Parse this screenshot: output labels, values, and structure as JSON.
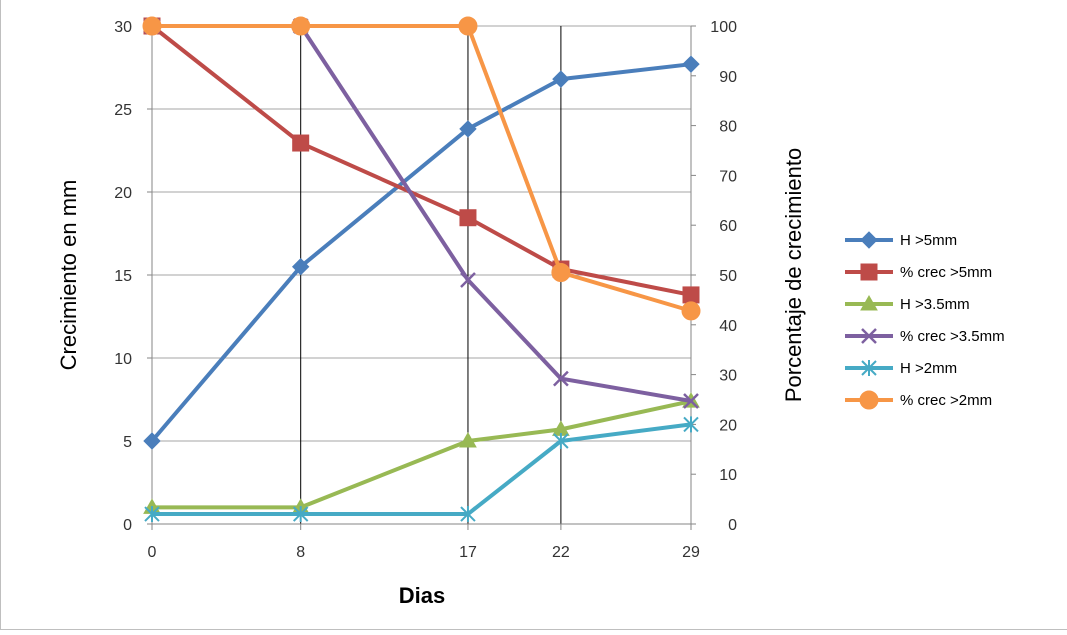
{
  "chart_data": {
    "type": "line",
    "x": [
      0,
      8,
      17,
      22,
      29
    ],
    "xlabel": "Dias",
    "ylabel": "Crecimiento en mm",
    "y2label": "Porcentaje  de crecimiento",
    "ylim": [
      0,
      30
    ],
    "y2lim": [
      0,
      100
    ],
    "yticks": [
      "0",
      "5",
      "10",
      "15",
      "20",
      "25",
      "30"
    ],
    "y2ticks": [
      "0",
      "10",
      "20",
      "30",
      "40",
      "50",
      "60",
      "70",
      "80",
      "90",
      "100"
    ],
    "xticks": [
      "0",
      "8",
      "17",
      "22",
      "29"
    ],
    "grid": "vertical lines at each x value",
    "legend_position": "right",
    "series": [
      {
        "name": "H >5mm",
        "axis": "left",
        "color": "#4a7ebb",
        "marker": "diamond",
        "values": [
          5.0,
          15.5,
          23.8,
          26.8,
          27.7
        ]
      },
      {
        "name": "% crec >5mm",
        "axis": "right",
        "color": "#be4b48",
        "marker": "square",
        "values": [
          100,
          76.5,
          61.5,
          51.2,
          46
        ]
      },
      {
        "name": "H >3.5mm",
        "axis": "left",
        "color": "#98b954",
        "marker": "triangle",
        "values": [
          1.0,
          1.0,
          5.0,
          5.7,
          7.4
        ]
      },
      {
        "name": "% crec >3.5mm",
        "axis": "right",
        "color": "#7d60a0",
        "marker": "x",
        "values": [
          100,
          100,
          49,
          29.2,
          24.7
        ]
      },
      {
        "name": "H >2mm",
        "axis": "left",
        "color": "#46aac5",
        "marker": "star",
        "values": [
          0.6,
          0.6,
          0.6,
          5.0,
          6.0
        ]
      },
      {
        "name": "% crec >2mm",
        "axis": "right",
        "color": "#f79646",
        "marker": "circle",
        "values": [
          100,
          100,
          100,
          50.5,
          42.8
        ]
      }
    ]
  }
}
